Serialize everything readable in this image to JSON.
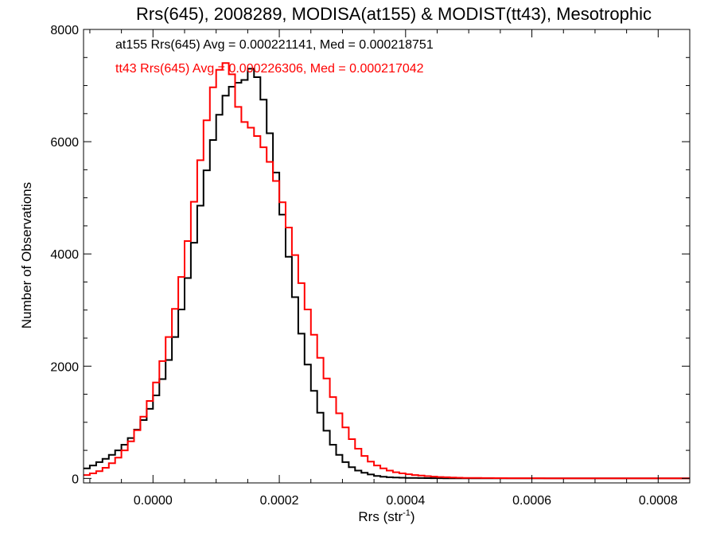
{
  "chart_data": {
    "type": "histogram-step",
    "title": "Rrs(645), 2008289, MODISA(at155) & MODIST(tt43), Mesotrophic",
    "xlabel_base": "Rrs (str",
    "xlabel_sup": "-1",
    "xlabel_end": ")",
    "ylabel": "Number of Observations",
    "xlim": [
      -0.00011,
      0.00085
    ],
    "ylim": [
      -80,
      8000
    ],
    "xticks": [
      0.0,
      0.0002,
      0.0004,
      0.0006,
      0.0008
    ],
    "xtick_labels": [
      "0.0000",
      "0.0002",
      "0.0004",
      "0.0006",
      "0.0008"
    ],
    "yticks": [
      0,
      2000,
      4000,
      6000,
      8000
    ],
    "ytick_labels": [
      "0",
      "2000",
      "4000",
      "6000",
      "8000"
    ],
    "annotations": [
      {
        "text": "at155 Rrs(645) Avg = 0.000221141, Med = 0.000218751",
        "color": "#000000"
      },
      {
        "text": "tt43 Rrs(645) Avg = 0.000226306, Med = 0.000217042",
        "color": "#ff0000"
      }
    ],
    "series": [
      {
        "color": "#000000",
        "x": [
          -0.00011,
          -0.0001,
          -9e-05,
          -8e-05,
          -7e-05,
          -6e-05,
          -5e-05,
          -4e-05,
          -3e-05,
          -2e-05,
          -1e-05,
          0.0,
          1e-05,
          2e-05,
          3e-05,
          4e-05,
          5e-05,
          6e-05,
          7e-05,
          8e-05,
          9e-05,
          0.0001,
          0.00011,
          0.00012,
          0.00013,
          0.00014,
          0.00015,
          0.00016,
          0.00017,
          0.00018,
          0.00019,
          0.0002,
          0.00021,
          0.00022,
          0.00023,
          0.00024,
          0.00025,
          0.00026,
          0.00027,
          0.00028,
          0.00029,
          0.0003,
          0.00031,
          0.00032,
          0.00033,
          0.00034,
          0.00035,
          0.00036,
          0.00037,
          0.00038,
          0.00039,
          0.0004,
          0.00041,
          0.00042,
          0.00043,
          0.00044,
          0.00045,
          0.00046,
          0.00047,
          0.00048,
          0.00049,
          0.0005,
          0.00052,
          0.00054,
          0.00056,
          0.00058,
          0.0006,
          0.00062,
          0.00065,
          0.0007,
          0.00075,
          0.0008,
          0.00085
        ],
        "y": [
          180,
          230,
          290,
          350,
          420,
          500,
          600,
          720,
          870,
          1040,
          1240,
          1480,
          1770,
          2110,
          2520,
          3010,
          3570,
          4200,
          4860,
          5490,
          6030,
          6480,
          6820,
          6980,
          7050,
          7100,
          7300,
          7150,
          6750,
          6150,
          5450,
          4700,
          3950,
          3230,
          2580,
          2030,
          1560,
          1170,
          850,
          600,
          420,
          290,
          200,
          140,
          100,
          70,
          45,
          30,
          20,
          15,
          12,
          10,
          8,
          6,
          5,
          4,
          3,
          2,
          2,
          2,
          1,
          1,
          1,
          1,
          1,
          1,
          1,
          1,
          1,
          1,
          1,
          1,
          1
        ]
      },
      {
        "color": "#ff0000",
        "x": [
          -0.00011,
          -0.0001,
          -9e-05,
          -8e-05,
          -7e-05,
          -6e-05,
          -5e-05,
          -4e-05,
          -3e-05,
          -2e-05,
          -1e-05,
          0.0,
          1e-05,
          2e-05,
          3e-05,
          4e-05,
          5e-05,
          6e-05,
          7e-05,
          8e-05,
          9e-05,
          0.0001,
          0.00011,
          0.00012,
          0.00013,
          0.00014,
          0.00015,
          0.00016,
          0.00017,
          0.00018,
          0.00019,
          0.0002,
          0.00021,
          0.00022,
          0.00023,
          0.00024,
          0.00025,
          0.00026,
          0.00027,
          0.00028,
          0.00029,
          0.0003,
          0.00031,
          0.00032,
          0.00033,
          0.00034,
          0.00035,
          0.00036,
          0.00037,
          0.00038,
          0.00039,
          0.0004,
          0.00041,
          0.00042,
          0.00043,
          0.00044,
          0.00045,
          0.00046,
          0.00047,
          0.00048,
          0.00049,
          0.0005,
          0.00052,
          0.00054,
          0.00056,
          0.00058,
          0.0006,
          0.00062,
          0.00065,
          0.0007,
          0.00075,
          0.0008,
          0.00085
        ],
        "y": [
          60,
          90,
          130,
          190,
          270,
          370,
          500,
          660,
          860,
          1100,
          1380,
          1710,
          2090,
          2520,
          3020,
          3590,
          4230,
          4930,
          5670,
          6380,
          6970,
          7280,
          7400,
          7200,
          6620,
          6350,
          6250,
          6100,
          5900,
          5640,
          5300,
          4920,
          4470,
          3980,
          3480,
          3010,
          2560,
          2150,
          1780,
          1450,
          1160,
          910,
          700,
          530,
          400,
          300,
          230,
          180,
          140,
          110,
          90,
          75,
          60,
          50,
          40,
          32,
          25,
          20,
          16,
          12,
          10,
          8,
          6,
          5,
          4,
          3,
          3,
          2,
          2,
          1,
          1,
          1,
          1
        ]
      }
    ]
  }
}
